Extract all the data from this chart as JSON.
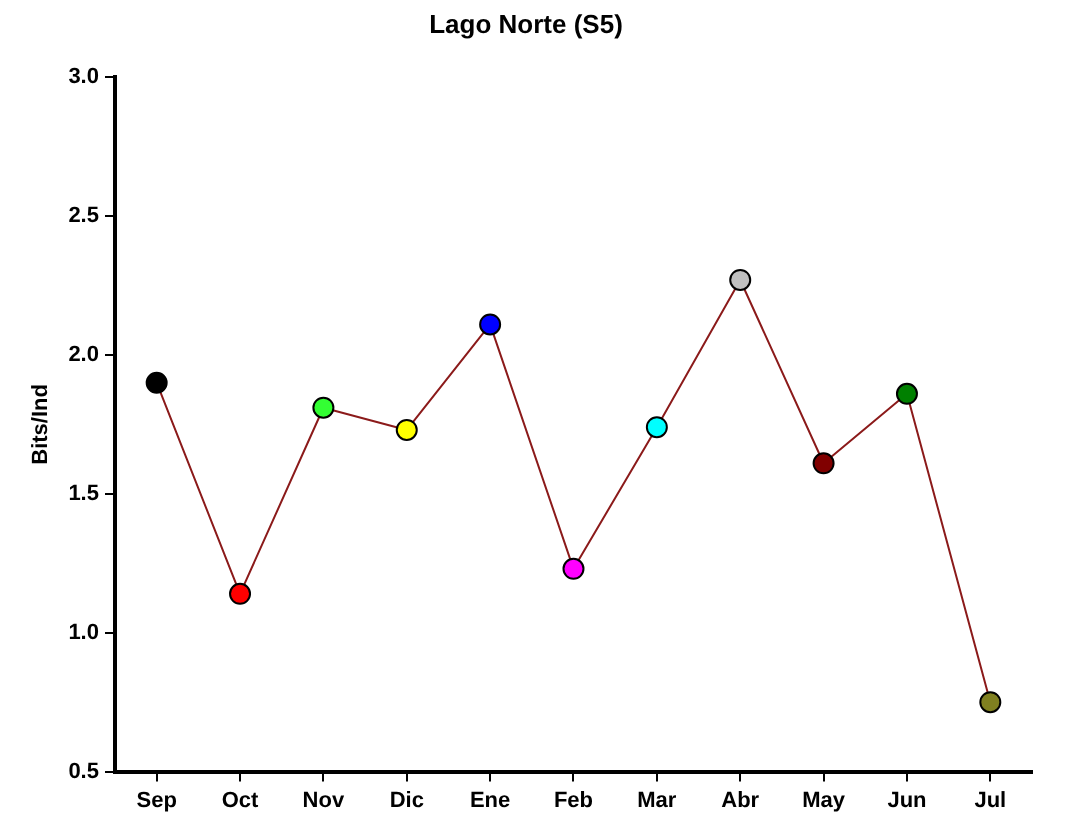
{
  "chart_data": {
    "type": "line",
    "title": "Lago Norte (S5)",
    "ylabel": "Bits/Ind",
    "categories": [
      "Sep",
      "Oct",
      "Nov",
      "Dic",
      "Ene",
      "Feb",
      "Mar",
      "Abr",
      "May",
      "Jun",
      "Jul"
    ],
    "series": [
      {
        "color": "#8b1a1a",
        "colors": [
          "#000000",
          "#ff0000",
          "#33ff33",
          "#ffff00",
          "#0000ff",
          "#ff00ff",
          "#00ffff",
          "#c0c0c0",
          "#800000",
          "#008000",
          "#808020"
        ],
        "values": [
          1.9,
          1.14,
          1.81,
          1.73,
          2.11,
          1.23,
          1.74,
          2.27,
          1.61,
          1.86,
          0.75
        ]
      }
    ],
    "ylim": [
      0.5,
      3.0
    ],
    "yticks": [
      {
        "value": 0.5,
        "label": "0.5"
      },
      {
        "value": 1,
        "label": "1.0"
      },
      {
        "value": 1.5,
        "label": "1.5"
      },
      {
        "value": 2,
        "label": "2.0"
      },
      {
        "value": 2.5,
        "label": "2.5"
      },
      {
        "value": 3,
        "label": "3.0"
      }
    ],
    "grid": false,
    "legend": false,
    "marker": "circle",
    "line_style": "solid"
  }
}
